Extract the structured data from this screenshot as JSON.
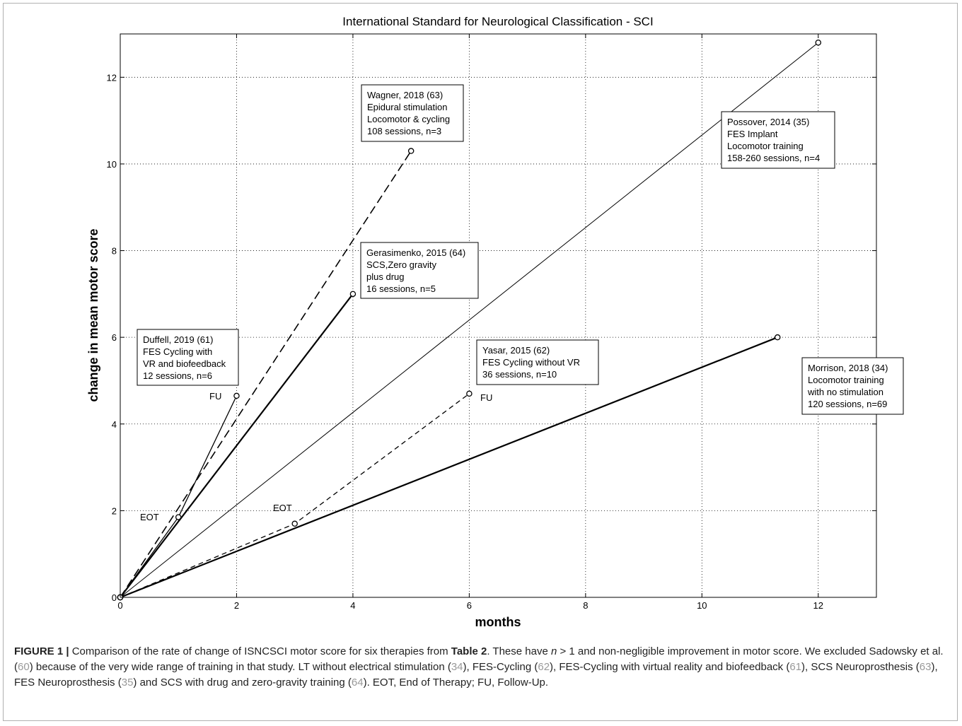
{
  "chart_data": {
    "type": "line",
    "title": "International Standard for Neurological Classification - SCI",
    "xlabel": "months",
    "ylabel": "change in mean motor score",
    "xlim": [
      0,
      13
    ],
    "ylim": [
      0,
      13
    ],
    "xticks": [
      0,
      2,
      4,
      6,
      8,
      10,
      12
    ],
    "yticks": [
      0,
      2,
      4,
      6,
      8,
      10,
      12
    ],
    "grid": true,
    "series": [
      {
        "style": "solid",
        "width": 1.3,
        "x": [
          0,
          1,
          2
        ],
        "y": [
          0,
          1.85,
          4.65
        ]
      },
      {
        "style": "dashed-long",
        "width": 1.6,
        "x": [
          0,
          5
        ],
        "y": [
          0,
          10.3
        ]
      },
      {
        "style": "solid",
        "width": 2.2,
        "x": [
          0,
          4
        ],
        "y": [
          0,
          7.0
        ]
      },
      {
        "style": "solid",
        "width": 1.0,
        "x": [
          0,
          12
        ],
        "y": [
          0,
          12.8
        ]
      },
      {
        "style": "dashed",
        "width": 1.3,
        "x": [
          0,
          3,
          6
        ],
        "y": [
          0,
          1.7,
          4.7
        ]
      },
      {
        "style": "solid",
        "width": 2.2,
        "x": [
          0,
          11.3
        ],
        "y": [
          0,
          6.0
        ]
      }
    ],
    "annotations": [
      {
        "lines": [
          "Duffell, 2019 (61)",
          "FES Cycling with",
          "VR and biofeedback",
          "12 sessions, n=6"
        ]
      },
      {
        "lines": [
          "Wagner, 2018 (63)",
          "Epidural stimulation",
          "Locomotor & cycling",
          "108 sessions, n=3"
        ]
      },
      {
        "lines": [
          "Gerasimenko, 2015 (64)",
          "SCS,Zero gravity",
          "plus drug",
          "16 sessions, n=5"
        ]
      },
      {
        "lines": [
          "Possover, 2014 (35)",
          "FES Implant",
          "Locomotor training",
          "158-260 sessions, n=4"
        ]
      },
      {
        "lines": [
          "Yasar, 2015 (62)",
          "FES Cycling without VR",
          "36 sessions, n=10"
        ]
      },
      {
        "lines": [
          "Morrison, 2018 (34)",
          "Locomotor training",
          "with no stimulation",
          "120 sessions, n=69"
        ]
      }
    ],
    "point_labels": [
      {
        "text": "FU"
      },
      {
        "text": "EOT"
      },
      {
        "text": "EOT"
      },
      {
        "text": "FU"
      }
    ]
  },
  "caption": {
    "label": "FIGURE 1 |",
    "t1": " Comparison of the rate of change of ISNCSCI motor score for six therapies from ",
    "table_ref": "Table 2",
    "t2": ". These have ",
    "n_var": "n",
    "t3": " > 1 and non-negligible improvement in motor score. We excluded Sadowsky et al. (",
    "r60": "60",
    "t4": ") because of the very wide range of training in that study. LT without electrical stimulation (",
    "r34": "34",
    "t5": "), FES-Cycling (",
    "r62": "62",
    "t6": "), FES-Cycling with virtual reality and biofeedback (",
    "r61": "61",
    "t7": "), SCS Neuroprosthesis (",
    "r63": "63",
    "t8": "), FES Neuroprosthesis (",
    "r35": "35",
    "t9": ") and SCS with drug and zero-gravity training (",
    "r64": "64",
    "t10": "). EOT, End of Therapy; FU, Follow-Up."
  }
}
